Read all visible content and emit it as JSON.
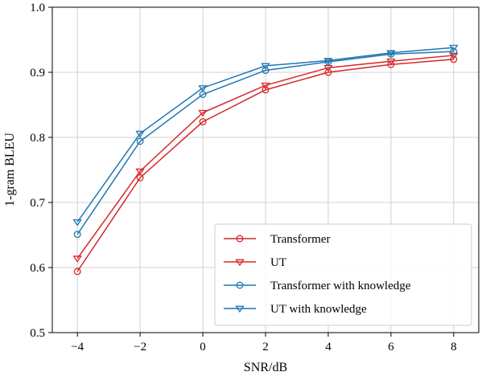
{
  "chart_data": {
    "type": "line",
    "xlabel": "SNR/dB",
    "ylabel": "1-gram BLEU",
    "xlim": [
      -4.8,
      8.8
    ],
    "ylim": [
      0.5,
      1.0
    ],
    "xticks": [
      -4,
      -2,
      0,
      2,
      4,
      6,
      8
    ],
    "yticks": [
      0.5,
      0.6,
      0.7,
      0.8,
      0.9,
      1.0
    ],
    "xtick_labels": [
      "−4",
      "−2",
      "0",
      "2",
      "4",
      "6",
      "8"
    ],
    "ytick_labels": [
      "0.5",
      "0.6",
      "0.7",
      "0.8",
      "0.9",
      "1.0"
    ],
    "grid": true,
    "legend_position": "lower-right",
    "x": [
      -4,
      -2,
      0,
      2,
      4,
      6,
      8
    ],
    "series": [
      {
        "name": "Transformer",
        "color": "#d62728",
        "marker": "circle",
        "values": [
          0.594,
          0.738,
          0.824,
          0.873,
          0.9,
          0.912,
          0.92
        ]
      },
      {
        "name": "UT",
        "color": "#d62728",
        "marker": "triangle-down",
        "values": [
          0.614,
          0.748,
          0.838,
          0.88,
          0.907,
          0.917,
          0.926
        ]
      },
      {
        "name": "Transformer with knowledge",
        "color": "#1f77b4",
        "marker": "circle",
        "values": [
          0.651,
          0.794,
          0.866,
          0.903,
          0.916,
          0.928,
          0.932
        ]
      },
      {
        "name": "UT with knowledge",
        "color": "#1f77b4",
        "marker": "triangle-down",
        "values": [
          0.67,
          0.806,
          0.876,
          0.91,
          0.918,
          0.93,
          0.938
        ]
      }
    ]
  }
}
